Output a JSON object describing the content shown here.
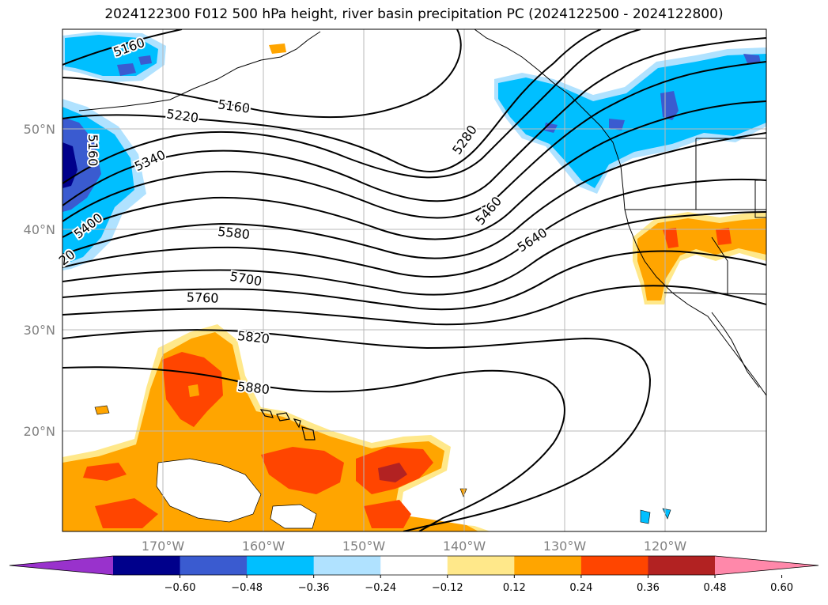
{
  "title": "2024122300 F012 500 hPa height, river basin precipitation PC (2024122500 - 2024122800)",
  "lat_labels": [
    "50°N",
    "40°N",
    "30°N",
    "20°N"
  ],
  "lon_labels": [
    "170°W",
    "160°W",
    "150°W",
    "140°W",
    "130°W",
    "120°W"
  ],
  "contour_labels": [
    "5160",
    "5160",
    "5160",
    "5220",
    "5280",
    "5340",
    "5400",
    "5460",
    "5580",
    "5640",
    "5700",
    "5760",
    "5820",
    "5880",
    "20"
  ],
  "colorbar": {
    "ticks": [
      "−0.60",
      "−0.48",
      "−0.36",
      "−0.24",
      "−0.12",
      "0.12",
      "0.24",
      "0.36",
      "0.48",
      "0.60"
    ],
    "colors": [
      "#9932cc",
      "#00008b",
      "#3a5bd0",
      "#00bfff",
      "#b0e2ff",
      "#ffffff",
      "#ffe88a",
      "#ffa500",
      "#ff4500",
      "#b22222",
      "#ff88aa"
    ]
  },
  "fill_colors": {
    "neg_light": "#b0e2ff",
    "neg_mid": "#00bfff",
    "neg_dark": "#3a5bd0",
    "neg_darkest": "#00008b",
    "pos_light": "#ffe88a",
    "pos_mid": "#ffa500",
    "pos_dark": "#ff4500",
    "pos_darkest": "#b22222"
  }
}
